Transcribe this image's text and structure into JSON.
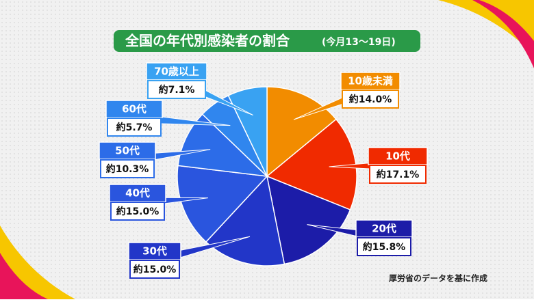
{
  "chart_data": {
    "type": "pie",
    "title": "全国の年代別感染者の割合",
    "subtitle": "(今月13～19日)",
    "categories": [
      "10歳未満",
      "10代",
      "20代",
      "30代",
      "40代",
      "50代",
      "60代",
      "70歳以上"
    ],
    "values": [
      14.0,
      17.1,
      15.8,
      15.0,
      15.0,
      10.3,
      5.7,
      7.1
    ],
    "value_labels": [
      "約14.0%",
      "約17.1%",
      "約15.8%",
      "約15.0%",
      "約15.0%",
      "約10.3%",
      "約5.7%",
      "約7.1%"
    ],
    "colors": [
      "#f28c00",
      "#f02a00",
      "#1c1ca8",
      "#2236c8",
      "#2a55de",
      "#2c6ce8",
      "#3086ee",
      "#39a2f2"
    ],
    "source": "厚労省のデータを基に作成"
  }
}
